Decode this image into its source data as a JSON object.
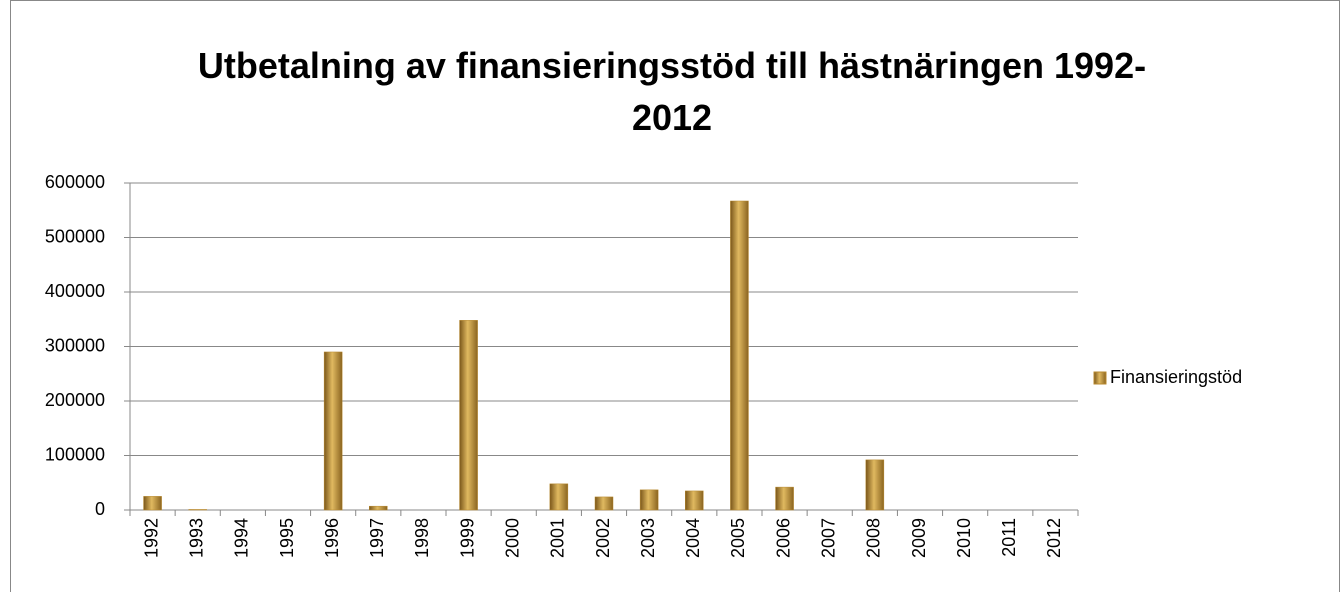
{
  "chart_data": {
    "type": "bar",
    "title": "Utbetalning av finansieringsstöd till hästnäringen 1992-2012",
    "categories": [
      "1992",
      "1993",
      "1994",
      "1995",
      "1996",
      "1997",
      "1998",
      "1999",
      "2000",
      "2001",
      "2002",
      "2003",
      "2004",
      "2005",
      "2006",
      "2007",
      "2008",
      "2009",
      "2010",
      "2011",
      "2012"
    ],
    "series": [
      {
        "name": "Finansieringstöd",
        "color": "#b8892e",
        "values": [
          25000,
          1000,
          0,
          0,
          290000,
          7000,
          0,
          348000,
          0,
          48000,
          24000,
          37000,
          35000,
          567000,
          42000,
          0,
          92000,
          0,
          0,
          0,
          0
        ]
      }
    ],
    "ylim": [
      0,
      600000
    ],
    "yticks": [
      0,
      100000,
      200000,
      300000,
      400000,
      500000,
      600000
    ],
    "grid": true,
    "legend": "right"
  }
}
